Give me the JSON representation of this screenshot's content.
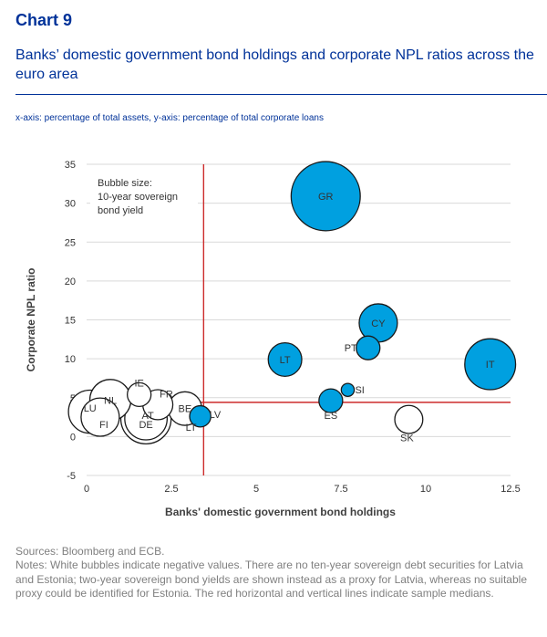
{
  "header": {
    "chart_number": "Chart 9",
    "title": "Banks’ domestic government bond holdings and corporate NPL ratios across the euro area",
    "subtitle": "x-axis: percentage of total assets, y-axis: percentage of total corporate loans"
  },
  "colors": {
    "accent": "#003299",
    "bubble_fill": "#00A0E0",
    "bubble_stroke": "#1a1a1a",
    "median_line": "#cc2b2b",
    "negative_bubble_fill": "#ffffff"
  },
  "chart_data": {
    "type": "scatter",
    "xlabel": "Banks' domestic government bond holdings",
    "ylabel": "Corporate NPL ratio",
    "xlim": [
      0,
      12.5
    ],
    "ylim": [
      -5,
      35
    ],
    "xticks": [
      0,
      2.5,
      5,
      7.5,
      10,
      12.5
    ],
    "xtick_labels": [
      "0",
      "2.5",
      "5",
      "7.5",
      "10",
      "12.5"
    ],
    "yticks": [
      -5,
      0,
      5,
      10,
      15,
      20,
      25,
      30,
      35
    ],
    "ytick_labels": [
      "-5",
      "0",
      "5",
      "10",
      "15",
      "20",
      "25",
      "30",
      "35"
    ],
    "grid": "horizontal",
    "median_x": 3.45,
    "median_y": 4.4,
    "annotation": "Bubble size: 10-year sovereign bond yield",
    "points": [
      {
        "label": "GR",
        "x": 7.05,
        "y": 30.9,
        "size": 8.5,
        "negative": false
      },
      {
        "label": "CY",
        "x": 8.6,
        "y": 14.6,
        "size": 2.6,
        "negative": false
      },
      {
        "label": "PT",
        "x": 8.3,
        "y": 11.4,
        "size": 1.0,
        "negative": false
      },
      {
        "label": "IT",
        "x": 11.9,
        "y": 9.3,
        "size": 4.6,
        "negative": false
      },
      {
        "label": "LT",
        "x": 5.85,
        "y": 9.9,
        "size": 2.0,
        "negative": false
      },
      {
        "label": "SI",
        "x": 7.7,
        "y": 6.0,
        "size": 0.3,
        "negative": false
      },
      {
        "label": "ES",
        "x": 7.2,
        "y": 4.6,
        "size": 1.0,
        "negative": false
      },
      {
        "label": "SK",
        "x": 9.5,
        "y": 2.2,
        "size": 1.4,
        "negative": true
      },
      {
        "label": "LV",
        "x": 3.35,
        "y": 2.6,
        "size": 0.8,
        "negative": false
      },
      {
        "label": "BE",
        "x": 2.9,
        "y": 3.6,
        "size": 2.0,
        "negative": true
      },
      {
        "label": "FR",
        "x": 2.1,
        "y": 4.1,
        "size": 1.6,
        "negative": true
      },
      {
        "label": "IE",
        "x": 1.55,
        "y": 5.4,
        "size": 1.0,
        "negative": true
      },
      {
        "label": "NL",
        "x": 0.7,
        "y": 4.7,
        "size": 3.0,
        "negative": true
      },
      {
        "label": "AT",
        "x": 1.75,
        "y": 2.3,
        "size": 3.2,
        "negative": true
      },
      {
        "label": "DE",
        "x": 1.75,
        "y": 2.3,
        "size": 4.5,
        "negative": true
      },
      {
        "label": "LU",
        "x": 0.1,
        "y": 3.2,
        "size": 3.3,
        "negative": true
      },
      {
        "label": "FI",
        "x": 0.4,
        "y": 2.5,
        "size": 2.6,
        "negative": true
      }
    ]
  },
  "notes": {
    "sources": "Sources: Bloomberg and ECB.",
    "notes": "Notes: White bubbles indicate negative values. There are no ten-year sovereign debt securities for Latvia and Estonia; two-year sovereign bond yields are shown instead as a proxy for Latvia, whereas no suitable proxy could be identified for Estonia. The red horizontal and vertical lines indicate sample medians."
  }
}
